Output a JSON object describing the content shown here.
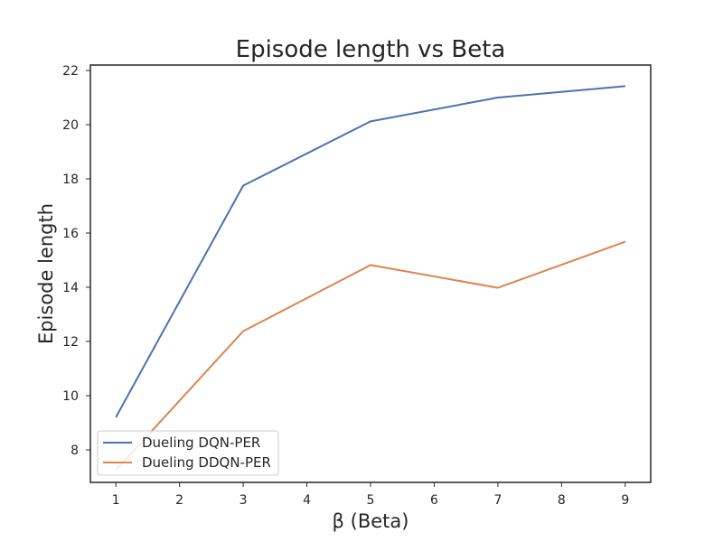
{
  "chart_data": {
    "type": "line",
    "title": "Episode length vs Beta",
    "xlabel": "β (Beta)",
    "ylabel": "Episode length",
    "xlim": [
      0.6,
      9.4
    ],
    "ylim": [
      6.8,
      22.2
    ],
    "xticks": [
      1,
      2,
      3,
      4,
      5,
      6,
      7,
      8,
      9
    ],
    "yticks": [
      8,
      10,
      12,
      14,
      16,
      18,
      20,
      22
    ],
    "grid": false,
    "legend_position": "lower-left",
    "x": [
      1,
      3,
      5,
      7,
      9
    ],
    "series": [
      {
        "name": "Dueling DQN-PER",
        "color": "#4c72b0",
        "values": [
          9.2,
          17.75,
          20.12,
          21.0,
          21.42
        ]
      },
      {
        "name": "Dueling DDQN-PER",
        "color": "#dd8452",
        "values": [
          7.25,
          12.38,
          14.82,
          13.98,
          15.68
        ]
      }
    ]
  }
}
